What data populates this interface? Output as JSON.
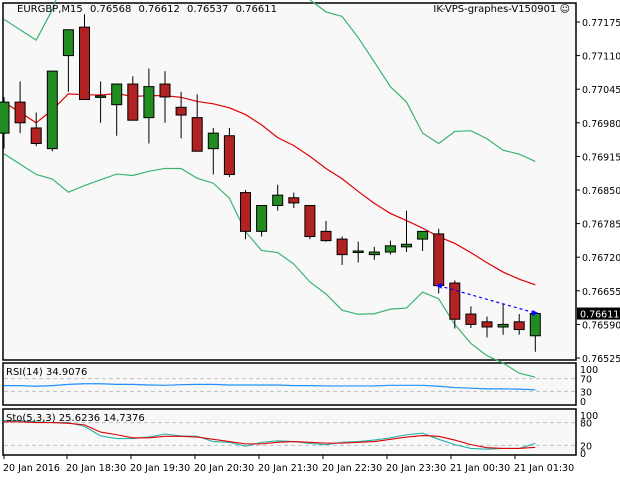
{
  "header": {
    "symbol": "EURGBP,M15",
    "open": "0.76568",
    "high": "0.76612",
    "low": "0.76537",
    "close": "0.76611",
    "expert_name": "IK-VPS-graphes-V150901",
    "expert_icon": "smiley-icon"
  },
  "price_axis": {
    "ticks": [
      "0.77175",
      "0.77110",
      "0.77045",
      "0.76980",
      "0.76915",
      "0.76850",
      "0.76785",
      "0.76720",
      "0.76655",
      "0.76590",
      "0.76525"
    ],
    "current_price": "0.76611"
  },
  "rsi_panel": {
    "label": "RSI(14) 34.9076",
    "ticks": [
      "100",
      "70",
      "30",
      "0"
    ]
  },
  "stoch_panel": {
    "label": "Sto(5,3,3) 25.6236 14.7376",
    "ticks": [
      "100",
      "80",
      "20",
      "0"
    ]
  },
  "time_axis": {
    "labels": [
      "20 Jan 2016",
      "20 Jan 18:30",
      "20 Jan 19:30",
      "20 Jan 20:30",
      "20 Jan 21:30",
      "20 Jan 22:30",
      "20 Jan 23:30",
      "21 Jan 00:30",
      "21 Jan 01:30"
    ]
  },
  "colors": {
    "bull": "#228B22",
    "bear": "#B22222",
    "ma": "#E00000",
    "bands": "#3CB371",
    "rsi": "#1E90FF",
    "stoch_main": "#20B2AA",
    "stoch_signal": "#E00000",
    "trendline": "#0000FF",
    "background": "#F8F8F8"
  },
  "chart_data": {
    "type": "candlestick",
    "title": "EURGBP,M15",
    "xlabel": "",
    "ylabel": "",
    "ylim": [
      0.76525,
      0.772
    ],
    "legend": [],
    "x_tick_labels": [
      "20 Jan 2016",
      "20 Jan 18:30",
      "20 Jan 19:30",
      "20 Jan 20:30",
      "20 Jan 21:30",
      "20 Jan 22:30",
      "20 Jan 23:30",
      "21 Jan 00:30",
      "21 Jan 01:30"
    ],
    "candles": [
      {
        "o": 0.7696,
        "h": 0.7703,
        "l": 0.7693,
        "c": 0.7702
      },
      {
        "o": 0.7702,
        "h": 0.7706,
        "l": 0.7696,
        "c": 0.7698
      },
      {
        "o": 0.7697,
        "h": 0.77,
        "l": 0.76935,
        "c": 0.7694
      },
      {
        "o": 0.7693,
        "h": 0.7708,
        "l": 0.76925,
        "c": 0.7708
      },
      {
        "o": 0.7711,
        "h": 0.77125,
        "l": 0.7704,
        "c": 0.7716
      },
      {
        "o": 0.77165,
        "h": 0.7719,
        "l": 0.7703,
        "c": 0.77025
      },
      {
        "o": 0.7703,
        "h": 0.7706,
        "l": 0.7698,
        "c": 0.77032
      },
      {
        "o": 0.77015,
        "h": 0.77035,
        "l": 0.76955,
        "c": 0.77055
      },
      {
        "o": 0.77055,
        "h": 0.7707,
        "l": 0.76985,
        "c": 0.76985
      },
      {
        "o": 0.7699,
        "h": 0.77085,
        "l": 0.7694,
        "c": 0.7705
      },
      {
        "o": 0.77055,
        "h": 0.7708,
        "l": 0.7698,
        "c": 0.7703
      },
      {
        "o": 0.7701,
        "h": 0.7704,
        "l": 0.7695,
        "c": 0.76995
      },
      {
        "o": 0.7699,
        "h": 0.77035,
        "l": 0.76955,
        "c": 0.76925
      },
      {
        "o": 0.7693,
        "h": 0.7697,
        "l": 0.7688,
        "c": 0.7696
      },
      {
        "o": 0.76955,
        "h": 0.7697,
        "l": 0.76875,
        "c": 0.7688
      },
      {
        "o": 0.76845,
        "h": 0.7685,
        "l": 0.76755,
        "c": 0.7677
      },
      {
        "o": 0.7677,
        "h": 0.7681,
        "l": 0.7676,
        "c": 0.7682
      },
      {
        "o": 0.7682,
        "h": 0.7686,
        "l": 0.7681,
        "c": 0.7684
      },
      {
        "o": 0.76835,
        "h": 0.76845,
        "l": 0.76815,
        "c": 0.76825
      },
      {
        "o": 0.7682,
        "h": 0.7682,
        "l": 0.76755,
        "c": 0.7676
      },
      {
        "o": 0.7677,
        "h": 0.7679,
        "l": 0.7675,
        "c": 0.76752
      },
      {
        "o": 0.76755,
        "h": 0.7676,
        "l": 0.76705,
        "c": 0.76725
      },
      {
        "o": 0.76732,
        "h": 0.7675,
        "l": 0.7671,
        "c": 0.76732
      },
      {
        "o": 0.76725,
        "h": 0.7674,
        "l": 0.76715,
        "c": 0.7673
      },
      {
        "o": 0.7673,
        "h": 0.76752,
        "l": 0.76725,
        "c": 0.76742
      },
      {
        "o": 0.7674,
        "h": 0.7681,
        "l": 0.7673,
        "c": 0.76745
      },
      {
        "o": 0.76755,
        "h": 0.7677,
        "l": 0.76732,
        "c": 0.7677
      },
      {
        "o": 0.76765,
        "h": 0.76775,
        "l": 0.7665,
        "c": 0.76665
      },
      {
        "o": 0.7667,
        "h": 0.76675,
        "l": 0.76582,
        "c": 0.766
      },
      {
        "o": 0.7661,
        "h": 0.76625,
        "l": 0.76583,
        "c": 0.7659
      },
      {
        "o": 0.76595,
        "h": 0.76605,
        "l": 0.76565,
        "c": 0.76585
      },
      {
        "o": 0.76585,
        "h": 0.7663,
        "l": 0.7657,
        "c": 0.7659
      },
      {
        "o": 0.76595,
        "h": 0.7661,
        "l": 0.7657,
        "c": 0.7658
      },
      {
        "o": 0.76568,
        "h": 0.76612,
        "l": 0.76537,
        "c": 0.76611
      }
    ],
    "rsi": {
      "label": "RSI(14)",
      "last": 34.9076,
      "levels": [
        70,
        30
      ]
    },
    "stochastic": {
      "label": "Sto(5,3,3)",
      "main": 25.6236,
      "signal": 14.7376,
      "levels": [
        80,
        20
      ]
    }
  }
}
